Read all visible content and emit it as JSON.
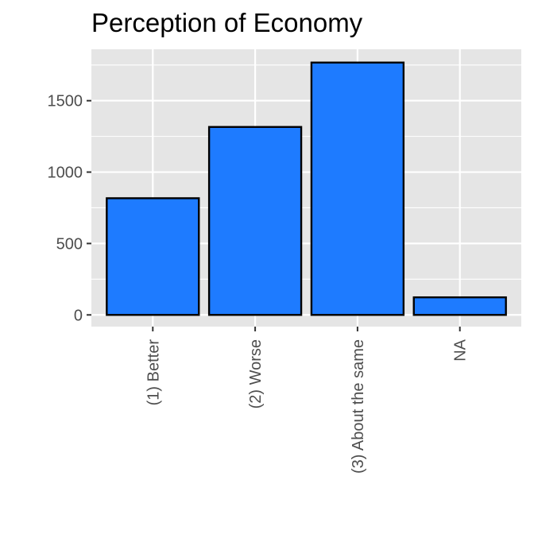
{
  "chart_data": {
    "type": "bar",
    "title": "Perception of Economy",
    "xlabel": "",
    "ylabel": "",
    "categories": [
      "(1) Better",
      "(2) Worse",
      "(3) About the same",
      "NA"
    ],
    "values": [
      817,
      1316,
      1767,
      123
    ],
    "ylim": [
      -82,
      1860
    ],
    "yticks": [
      0,
      500,
      1000,
      1500
    ],
    "grid": true,
    "legend": "none",
    "colors": {
      "bar_fill": "#1E7BFF",
      "bar_stroke": "#000000",
      "panel_bg": "#E5E5E5",
      "grid_major": "#FFFFFF"
    }
  }
}
